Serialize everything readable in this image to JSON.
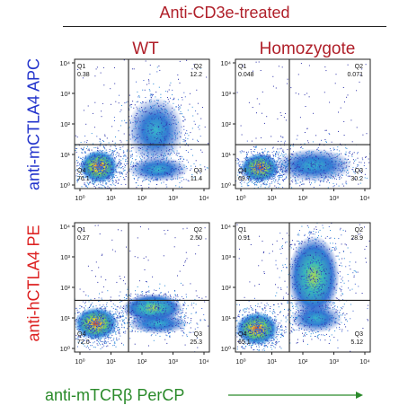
{
  "title": "Anti-CD3e-treated",
  "columns": [
    "WT",
    "Homozygote"
  ],
  "rows": [
    "anti-mCTLA4 APC",
    "anti-hCTLA4 PE"
  ],
  "x_label": "anti-mTCRβ PerCP",
  "colors": {
    "title": "#b0202a",
    "row_top": "#2233cc",
    "row_bottom": "#dd2222",
    "x_label": "#2a8a2a"
  },
  "chart_data": [
    {
      "type": "scatter",
      "panel": "WT / anti-mCTLA4 APC",
      "quadrants": {
        "Q1": "0.38",
        "Q2": "12.2",
        "Q3": "11.4",
        "Q4": "76.1"
      },
      "x_ticks": [
        "10⁰",
        "10¹",
        "10²",
        "10³",
        "10⁴"
      ],
      "y_ticks": [
        "10⁰",
        "10¹",
        "10²",
        "10³",
        "10⁴"
      ]
    },
    {
      "type": "scatter",
      "panel": "Homozygote / anti-mCTLA4 APC",
      "quadrants": {
        "Q1": "0.048",
        "Q2": "0.071",
        "Q3": "30.2",
        "Q4": "69.7"
      },
      "x_ticks": [
        "10⁰",
        "10¹",
        "10²",
        "10³",
        "10⁴"
      ],
      "y_ticks": [
        "10⁰",
        "10¹",
        "10²",
        "10³",
        "10⁴"
      ]
    },
    {
      "type": "scatter",
      "panel": "WT / anti-hCTLA4 PE",
      "quadrants": {
        "Q1": "0.27",
        "Q2": "2.50",
        "Q3": "25.3",
        "Q4": "72.0"
      },
      "x_ticks": [
        "10⁰",
        "10¹",
        "10²",
        "10³",
        "10⁴"
      ],
      "y_ticks": [
        "10⁰",
        "10¹",
        "10²",
        "10³",
        "10⁴"
      ]
    },
    {
      "type": "scatter",
      "panel": "Homozygote / anti-hCTLA4 PE",
      "quadrants": {
        "Q1": "0.91",
        "Q2": "28.9",
        "Q3": "5.12",
        "Q4": "65.1"
      },
      "x_ticks": [
        "10⁰",
        "10¹",
        "10²",
        "10³",
        "10⁴"
      ],
      "y_ticks": [
        "10⁰",
        "10¹",
        "10²",
        "10³",
        "10⁴"
      ]
    }
  ]
}
